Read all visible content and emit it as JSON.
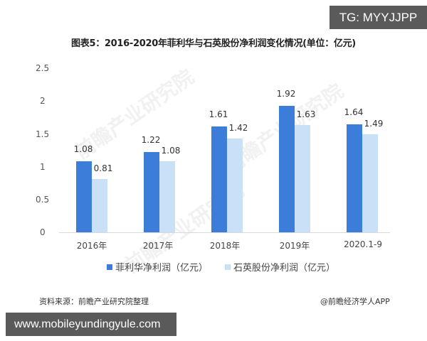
{
  "badges": {
    "top_right": "TG: MYYJJPP",
    "bottom_left": "www.mobileyundingyule.com"
  },
  "title": "图表5：2016-2020年菲利华与石英股份净利润变化情况(单位：亿元)",
  "watermark": "前瞻产业研究院",
  "source": "资料来源：前瞻产业研究院整理",
  "credit": "@前瞻经济学人APP",
  "colors": {
    "series1": "#3b7dd8",
    "series2": "#c9e0f7"
  },
  "chart_data": {
    "type": "bar",
    "title": "图表5：2016-2020年菲利华与石英股份净利润变化情况(单位：亿元)",
    "xlabel": "",
    "ylabel": "",
    "ylim": [
      0,
      2.5
    ],
    "yticks": [
      "0",
      "0.5",
      "1",
      "1.5",
      "2",
      "2.5"
    ],
    "grid": false,
    "legend_position": "bottom",
    "categories": [
      "2016年",
      "2017年",
      "2018年",
      "2019年",
      "2020.1-9"
    ],
    "series": [
      {
        "name": "菲利华净利润（亿元）",
        "values": [
          1.08,
          1.22,
          1.61,
          1.92,
          1.64
        ],
        "labels": [
          "1.08",
          "1.22",
          "1.61",
          "1.92",
          "1.64"
        ]
      },
      {
        "name": "石英股份净利润（亿元）",
        "values": [
          0.81,
          1.08,
          1.42,
          1.63,
          1.49
        ],
        "labels": [
          "0.81",
          "1.08",
          "1.42",
          "1.63",
          "1.49"
        ]
      }
    ]
  }
}
